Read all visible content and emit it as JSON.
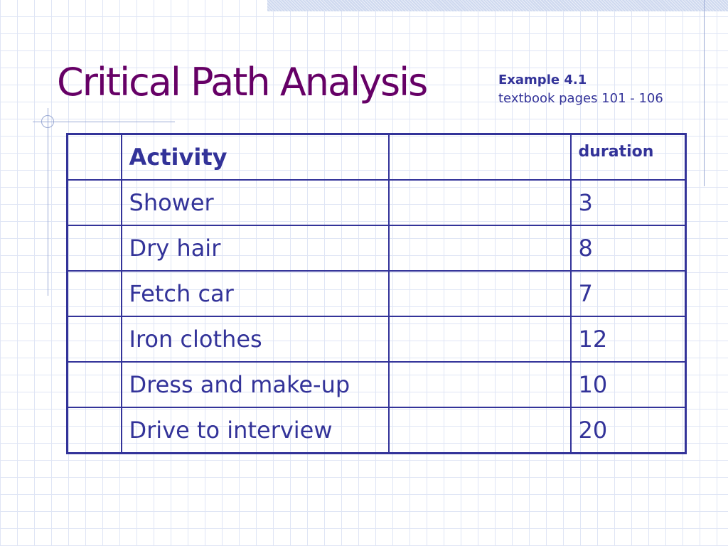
{
  "slide": {
    "title": "Critical Path Analysis",
    "example_label": "Example 4.1",
    "pages_label": "textbook pages 101 - 106"
  },
  "table": {
    "headers": [
      "",
      "Activity",
      "",
      "duration"
    ],
    "rows": [
      {
        "activity": "Shower",
        "duration": "3"
      },
      {
        "activity": "Dry hair",
        "duration": "8"
      },
      {
        "activity": "Fetch car",
        "duration": "7"
      },
      {
        "activity": "Iron clothes",
        "duration": "12"
      },
      {
        "activity": "Dress and make-up",
        "duration": "10"
      },
      {
        "activity": "Drive to interview",
        "duration": "20"
      }
    ]
  },
  "colors": {
    "title": "#660066",
    "text": "#333399",
    "grid": "#dfe5f5",
    "band": "#cfd9ef"
  }
}
